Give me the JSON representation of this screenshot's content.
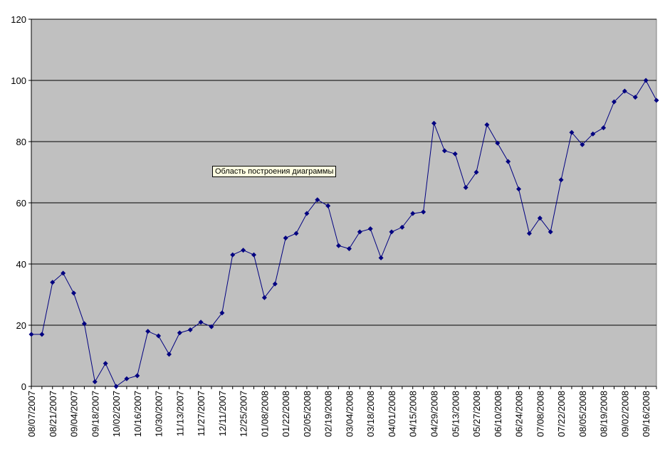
{
  "chart_data": {
    "type": "line",
    "title": "",
    "xlabel": "",
    "ylabel": "",
    "ylim": [
      0,
      120
    ],
    "yticks": [
      0,
      20,
      40,
      60,
      80,
      100,
      120
    ],
    "grid": true,
    "legend": "none",
    "plot_background": "#c0c0c0",
    "line_color": "#000080",
    "marker": "diamond",
    "x_tick_labels": [
      "08/07/2007",
      "08/21/2007",
      "09/04/2007",
      "09/18/2007",
      "10/02/2007",
      "10/16/2007",
      "10/30/2007",
      "11/13/2007",
      "11/27/2007",
      "12/11/2007",
      "12/25/2007",
      "01/08/2008",
      "01/22/2008",
      "02/05/2008",
      "02/19/2008",
      "03/04/2008",
      "03/18/2008",
      "04/01/2008",
      "04/15/2008",
      "04/29/2008",
      "05/13/2008",
      "05/27/2008",
      "06/10/2008",
      "06/24/2008",
      "07/08/2008",
      "07/22/2008",
      "08/05/2008",
      "08/19/2008",
      "09/02/2008",
      "09/16/2008"
    ],
    "x": [
      "08/07/2007",
      "08/14/2007",
      "08/21/2007",
      "08/28/2007",
      "09/04/2007",
      "09/11/2007",
      "09/18/2007",
      "09/25/2007",
      "10/02/2007",
      "10/09/2007",
      "10/16/2007",
      "10/23/2007",
      "10/30/2007",
      "11/06/2007",
      "11/13/2007",
      "11/20/2007",
      "11/27/2007",
      "12/04/2007",
      "12/11/2007",
      "12/18/2007",
      "12/25/2007",
      "01/01/2008",
      "01/08/2008",
      "01/15/2008",
      "01/22/2008",
      "01/29/2008",
      "02/05/2008",
      "02/12/2008",
      "02/19/2008",
      "02/26/2008",
      "03/04/2008",
      "03/11/2008",
      "03/18/2008",
      "03/25/2008",
      "04/01/2008",
      "04/08/2008",
      "04/15/2008",
      "04/22/2008",
      "04/29/2008",
      "05/06/2008",
      "05/13/2008",
      "05/20/2008",
      "05/27/2008",
      "06/03/2008",
      "06/10/2008",
      "06/17/2008",
      "06/24/2008",
      "07/01/2008",
      "07/08/2008",
      "07/15/2008",
      "07/22/2008",
      "07/29/2008",
      "08/05/2008",
      "08/12/2008",
      "08/19/2008",
      "08/26/2008",
      "09/02/2008",
      "09/09/2008",
      "09/16/2008",
      "09/23/2008"
    ],
    "series": [
      {
        "values": [
          17,
          17,
          34,
          37,
          30.5,
          20.5,
          1.5,
          7.5,
          0,
          2.5,
          3.5,
          18,
          16.5,
          10.5,
          17.5,
          18.5,
          21,
          19.5,
          24,
          43,
          44.5,
          43,
          29,
          33.5,
          48.5,
          50,
          56.5,
          61,
          59,
          46,
          45,
          50.5,
          51.5,
          42,
          50.5,
          52,
          56.5,
          57,
          86,
          77,
          76,
          65,
          70,
          85.5,
          79.5,
          73.5,
          64.5,
          50,
          55,
          50.5,
          67.5,
          83,
          79,
          82.5,
          84.5,
          93,
          96.5,
          94.5,
          100,
          93.5
        ]
      }
    ]
  },
  "tooltip": {
    "text": "Область построения диаграммы"
  }
}
